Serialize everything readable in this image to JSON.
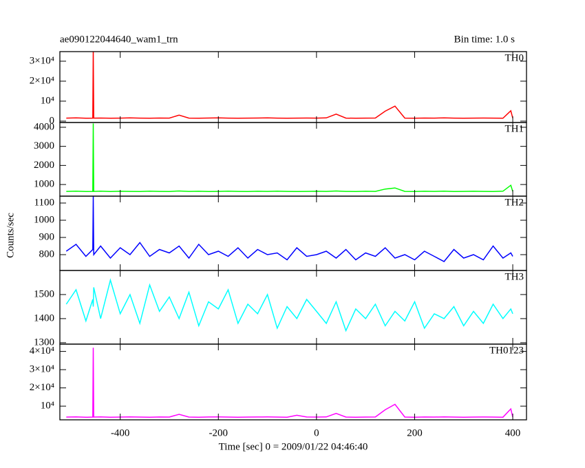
{
  "chart_data": [
    {
      "type": "line",
      "title": "ae090122044640_wam1_trn",
      "subtitle": "Bin time: 1.0 s",
      "label": "TH0",
      "color": "#ff0000",
      "x": [
        -510,
        -490,
        -470,
        -456,
        -455,
        -454,
        -440,
        -420,
        -400,
        -380,
        -360,
        -340,
        -320,
        -300,
        -280,
        -260,
        -240,
        -220,
        -200,
        -180,
        -160,
        -140,
        -120,
        -100,
        -80,
        -60,
        -40,
        -20,
        0,
        20,
        40,
        60,
        80,
        100,
        120,
        140,
        160,
        180,
        200,
        220,
        240,
        260,
        280,
        300,
        320,
        340,
        360,
        380,
        396,
        400
      ],
      "values": [
        1500,
        1600,
        1450,
        1500,
        36000,
        1500,
        1550,
        1450,
        1500,
        1600,
        1500,
        1450,
        1550,
        1500,
        3000,
        1500,
        1450,
        1550,
        1600,
        1500,
        1450,
        1500,
        1550,
        1600,
        1500,
        1450,
        1500,
        1550,
        1500,
        1600,
        3500,
        1500,
        1450,
        1500,
        1550,
        5000,
        7500,
        1500,
        1450,
        1550,
        1500,
        1600,
        1500,
        1450,
        1500,
        1550,
        1500,
        1450,
        5200,
        1500
      ],
      "ylim": [
        -700,
        34800
      ],
      "yticks": [
        0,
        {
          "value": 10000,
          "label": "10⁴"
        },
        {
          "value": 20000,
          "label": "2×10⁴"
        },
        {
          "value": 30000,
          "label": "3×10⁴"
        }
      ]
    },
    {
      "type": "line",
      "label": "TH1",
      "color": "#00ff00",
      "x": [
        -510,
        -490,
        -470,
        -456,
        -455,
        -454,
        -440,
        -420,
        -400,
        -380,
        -360,
        -340,
        -320,
        -300,
        -280,
        -260,
        -240,
        -220,
        -200,
        -180,
        -160,
        -140,
        -120,
        -100,
        -80,
        -60,
        -40,
        -20,
        0,
        20,
        40,
        60,
        80,
        100,
        120,
        140,
        160,
        180,
        200,
        220,
        240,
        260,
        280,
        300,
        320,
        340,
        360,
        380,
        396,
        400
      ],
      "values": [
        640,
        650,
        630,
        640,
        4200,
        640,
        650,
        635,
        645,
        640,
        630,
        650,
        640,
        635,
        660,
        640,
        645,
        630,
        640,
        650,
        640,
        635,
        645,
        640,
        650,
        640,
        630,
        640,
        645,
        640,
        660,
        640,
        635,
        645,
        640,
        760,
        820,
        640,
        630,
        645,
        640,
        650,
        635,
        640,
        645,
        640,
        630,
        650,
        960,
        640
      ],
      "ylim": [
        390,
        4250
      ],
      "yticks": [
        1000,
        2000,
        3000,
        4000
      ]
    },
    {
      "type": "line",
      "label": "TH2",
      "color": "#0000ff",
      "ylabel": "Counts/sec",
      "x": [
        -510,
        -490,
        -470,
        -456,
        -455,
        -454,
        -440,
        -420,
        -400,
        -380,
        -360,
        -340,
        -320,
        -300,
        -280,
        -260,
        -240,
        -220,
        -200,
        -180,
        -160,
        -140,
        -120,
        -100,
        -80,
        -60,
        -40,
        -20,
        0,
        20,
        40,
        60,
        80,
        100,
        120,
        140,
        160,
        180,
        200,
        220,
        240,
        260,
        280,
        300,
        320,
        340,
        360,
        380,
        396,
        400
      ],
      "values": [
        820,
        860,
        790,
        830,
        1140,
        800,
        850,
        780,
        840,
        800,
        870,
        790,
        830,
        810,
        850,
        780,
        860,
        800,
        820,
        790,
        840,
        780,
        830,
        800,
        810,
        770,
        840,
        790,
        800,
        820,
        780,
        830,
        770,
        810,
        790,
        840,
        780,
        800,
        770,
        820,
        790,
        760,
        830,
        780,
        800,
        770,
        850,
        780,
        810,
        790
      ],
      "ylim": [
        708,
        1140
      ],
      "yticks": [
        800,
        900,
        1000,
        1100
      ]
    },
    {
      "type": "line",
      "label": "TH3",
      "color": "#00ffff",
      "x": [
        -510,
        -490,
        -470,
        -456,
        -455,
        -454,
        -440,
        -420,
        -400,
        -380,
        -360,
        -340,
        -320,
        -300,
        -280,
        -260,
        -240,
        -220,
        -200,
        -180,
        -160,
        -140,
        -120,
        -100,
        -80,
        -60,
        -40,
        -20,
        0,
        20,
        40,
        60,
        80,
        100,
        120,
        140,
        160,
        180,
        200,
        220,
        240,
        260,
        280,
        300,
        320,
        340,
        360,
        380,
        396,
        400
      ],
      "values": [
        1460,
        1520,
        1390,
        1480,
        1450,
        1530,
        1400,
        1560,
        1420,
        1500,
        1380,
        1540,
        1430,
        1490,
        1400,
        1510,
        1370,
        1470,
        1440,
        1520,
        1380,
        1460,
        1420,
        1500,
        1360,
        1450,
        1400,
        1480,
        1430,
        1380,
        1470,
        1350,
        1440,
        1400,
        1460,
        1370,
        1430,
        1390,
        1470,
        1360,
        1420,
        1400,
        1450,
        1370,
        1430,
        1380,
        1460,
        1400,
        1440,
        1420
      ],
      "ylim": [
        1294,
        1600
      ],
      "yticks": [
        1300,
        1400,
        1500
      ]
    },
    {
      "type": "line",
      "label": "TH0123",
      "color": "#ff00ff",
      "xlabel": "Time [sec] 0 = 2009/01/22 04:46:40",
      "x": [
        -510,
        -490,
        -470,
        -456,
        -455,
        -454,
        -440,
        -420,
        -400,
        -380,
        -360,
        -340,
        -320,
        -300,
        -280,
        -260,
        -240,
        -220,
        -200,
        -180,
        -160,
        -140,
        -120,
        -100,
        -80,
        -60,
        -40,
        -20,
        0,
        20,
        40,
        60,
        80,
        100,
        120,
        140,
        160,
        180,
        200,
        220,
        240,
        260,
        280,
        300,
        320,
        340,
        360,
        380,
        396,
        400
      ],
      "values": [
        4000,
        4100,
        3900,
        4000,
        42000,
        4000,
        4100,
        3950,
        4000,
        4100,
        4000,
        3950,
        4050,
        4000,
        5500,
        4000,
        3950,
        4050,
        4100,
        4000,
        3950,
        4000,
        4050,
        4100,
        4000,
        3950,
        5000,
        4050,
        4000,
        4100,
        6000,
        4000,
        3950,
        4000,
        4050,
        8000,
        11000,
        4000,
        3950,
        4050,
        4000,
        4100,
        4000,
        3950,
        4000,
        4050,
        4000,
        3950,
        8500,
        4000
      ],
      "ylim": [
        2500,
        44000
      ],
      "yticks": [
        {
          "value": 10000,
          "label": "10⁴"
        },
        {
          "value": 20000,
          "label": "2×10⁴"
        },
        {
          "value": 30000,
          "label": "3×10⁴"
        },
        {
          "value": 40000,
          "label": "4×10⁴"
        }
      ],
      "xlim": [
        -523,
        428
      ],
      "xticks": [
        -400,
        -200,
        0,
        200,
        400
      ]
    }
  ]
}
